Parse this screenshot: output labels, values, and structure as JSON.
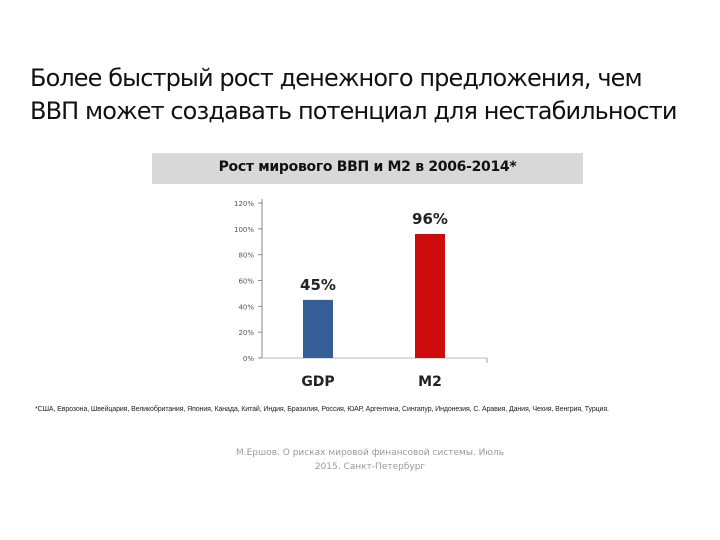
{
  "slide": {
    "title_line1": "Более быстрый рост денежного предложения, чем",
    "title_line2": "ВВП может создавать потенциал для нестабильности"
  },
  "chart_data": {
    "type": "bar",
    "title": "Рост мирового ВВП и М2 в 2006-2014*",
    "categories": [
      "GDP",
      "M2"
    ],
    "values": [
      45,
      96
    ],
    "value_labels": [
      "45%",
      "96%"
    ],
    "bar_colors": [
      "#355d96",
      "#cc0c0c"
    ],
    "yticks": [
      "0%",
      "20%",
      "40%",
      "60%",
      "80%",
      "100%",
      "120%"
    ],
    "ylim": [
      0,
      120
    ],
    "grid": false,
    "legend": "none"
  },
  "footnote": "*США, Еврозона, Швейцария, Великобритания, Япония, Канада, Китай, Индия, Бразилия, Россия, ЮАР, Аргентина, Сингапур, Индонезия, С. Аравия, Дания, Чехия, Венгрия, Турция.",
  "source": {
    "line1": "М.Ершов. О рисках мировой финансовой системы. Июль",
    "line2": "2015. Санкт-Петербург"
  }
}
